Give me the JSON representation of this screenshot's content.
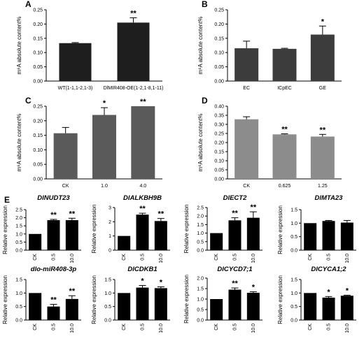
{
  "chart_data": [
    {
      "id": "A",
      "type": "bar",
      "label": "A",
      "ylabel": "m⁶A absolute content%",
      "ylim": [
        0,
        0.25
      ],
      "yticks": [
        "0.00",
        "0.05",
        "0.10",
        "0.15",
        "0.20",
        "0.25"
      ],
      "categories": [
        "WT(1-1,1-2,1-3)",
        "DlMIR408-OE(1-2,1-8,1-11)"
      ],
      "values": [
        0.133,
        0.205
      ],
      "errors": [
        0.002,
        0.017
      ],
      "stars": [
        "",
        "**"
      ],
      "bar_color": "#1e1e1e"
    },
    {
      "id": "B",
      "type": "bar",
      "label": "B",
      "ylabel": "m⁶A absolute content%",
      "ylim": [
        0,
        0.25
      ],
      "yticks": [
        "0.00",
        "0.05",
        "0.10",
        "0.15",
        "0.20",
        "0.25"
      ],
      "categories": [
        "EC",
        "ICpEC",
        "GE"
      ],
      "values": [
        0.115,
        0.113,
        0.163
      ],
      "errors": [
        0.025,
        0.002,
        0.03
      ],
      "stars": [
        "",
        "",
        "*"
      ],
      "bar_color": "#3c3c3c"
    },
    {
      "id": "C",
      "type": "bar",
      "label": "C",
      "ylabel": "m⁶A absolute content%",
      "ylim": [
        0,
        0.25
      ],
      "yticks": [
        "0.00",
        "0.05",
        "0.10",
        "0.15",
        "0.20",
        "0.25"
      ],
      "categories": [
        "CK",
        "1.0",
        "4.0"
      ],
      "values": [
        0.157,
        0.22,
        0.25
      ],
      "errors": [
        0.02,
        0.025,
        0.0
      ],
      "stars": [
        "",
        "*",
        "**"
      ],
      "bar_color": "#5a5a5a"
    },
    {
      "id": "D",
      "type": "bar",
      "label": "D",
      "ylabel": "m⁶A absolute content%",
      "ylim": [
        0,
        0.4
      ],
      "yticks": [
        "0.00",
        "0.05",
        "0.10",
        "0.15",
        "0.20",
        "0.25",
        "0.30",
        "0.35",
        "0.40"
      ],
      "categories": [
        "CK",
        "0.625",
        "1.25"
      ],
      "values": [
        0.328,
        0.245,
        0.233
      ],
      "errors": [
        0.014,
        0.003,
        0.012
      ],
      "stars": [
        "",
        "**",
        "**"
      ],
      "bar_color": "#8c8c8c"
    },
    {
      "id": "E1",
      "type": "bar",
      "label": "E",
      "title": "DlNUDT23",
      "ylabel": "Relative expression",
      "ylim": [
        0,
        2.5
      ],
      "yticks": [
        "0.0",
        "0.5",
        "1.0",
        "1.5",
        "2.0",
        "2.5"
      ],
      "categories": [
        "CK",
        "0.5",
        "10.0"
      ],
      "values": [
        1.0,
        1.85,
        1.85
      ],
      "errors": [
        0.0,
        0.05,
        0.12
      ],
      "stars": [
        "",
        "**",
        "**"
      ],
      "bar_color": "#000000"
    },
    {
      "id": "E2",
      "type": "bar",
      "title": "DlALKBH9B",
      "ylabel": "Relative expression",
      "ylim": [
        0,
        3
      ],
      "yticks": [
        "0",
        "1",
        "2",
        "3"
      ],
      "categories": [
        "CK",
        "0.5",
        "10.0"
      ],
      "values": [
        1.0,
        2.5,
        2.05
      ],
      "errors": [
        0.0,
        0.1,
        0.18
      ],
      "stars": [
        "",
        "**",
        "**"
      ],
      "bar_color": "#000000"
    },
    {
      "id": "E3",
      "type": "bar",
      "title": "DlECT2",
      "ylabel": "Relative expression",
      "ylim": [
        0,
        2.5
      ],
      "yticks": [
        "0.0",
        "0.5",
        "1.0",
        "1.5",
        "2.0",
        "2.5"
      ],
      "categories": [
        "CK",
        "0.5",
        "10.0"
      ],
      "values": [
        1.0,
        1.75,
        1.9
      ],
      "errors": [
        0.0,
        0.15,
        0.35
      ],
      "stars": [
        "",
        "**",
        "**"
      ],
      "bar_color": "#000000"
    },
    {
      "id": "E4",
      "type": "bar",
      "title": "DlMTA23",
      "ylabel": "Relative expression",
      "ylim": [
        0,
        1.5
      ],
      "yticks": [
        "0.0",
        "0.5",
        "1.0",
        "1.5"
      ],
      "categories": [
        "CK",
        "0.5",
        "10.0"
      ],
      "values": [
        1.0,
        1.08,
        1.02
      ],
      "errors": [
        0.0,
        0.02,
        0.08
      ],
      "stars": [
        "",
        "",
        ""
      ],
      "bar_color": "#000000"
    },
    {
      "id": "E5",
      "type": "bar",
      "title": "dlo-miR408-3p",
      "ylabel": "Relative expression",
      "ylim": [
        0,
        1.5
      ],
      "yticks": [
        "0.0",
        "0.5",
        "1.0",
        "1.5"
      ],
      "categories": [
        "CK",
        "0.5",
        "10.0"
      ],
      "values": [
        1.0,
        0.5,
        0.78
      ],
      "errors": [
        0.0,
        0.08,
        0.12
      ],
      "stars": [
        "",
        "**",
        "**"
      ],
      "bar_color": "#000000"
    },
    {
      "id": "E6",
      "type": "bar",
      "title": "DlCDKB1",
      "ylabel": "Relative expression",
      "ylim": [
        0,
        1.5
      ],
      "yticks": [
        "0.0",
        "0.5",
        "1.0",
        "1.5"
      ],
      "categories": [
        "CK",
        "0.5",
        "10.0"
      ],
      "values": [
        1.0,
        1.2,
        1.18
      ],
      "errors": [
        0.0,
        0.08,
        0.05
      ],
      "stars": [
        "",
        "*",
        "*"
      ],
      "bar_color": "#000000"
    },
    {
      "id": "E7",
      "type": "bar",
      "title": "DlCYCD7;1",
      "ylabel": "Relative expression",
      "ylim": [
        0,
        2.0
      ],
      "yticks": [
        "0.0",
        "0.5",
        "1.0",
        "1.5",
        "2.0"
      ],
      "categories": [
        "CK",
        "0.5",
        "10.0"
      ],
      "values": [
        1.0,
        1.45,
        1.3
      ],
      "errors": [
        0.0,
        0.08,
        0.05
      ],
      "stars": [
        "",
        "**",
        "*"
      ],
      "bar_color": "#000000"
    },
    {
      "id": "E8",
      "type": "bar",
      "title": "DlCYCA1;2",
      "ylabel": "Relative expression",
      "ylim": [
        0,
        1.5
      ],
      "yticks": [
        "0.0",
        "0.5",
        "1.0",
        "1.5"
      ],
      "categories": [
        "CK",
        "0.5",
        "10.0"
      ],
      "values": [
        1.0,
        0.83,
        0.9
      ],
      "errors": [
        0.0,
        0.04,
        0.02
      ],
      "stars": [
        "",
        "*",
        "*"
      ],
      "bar_color": "#000000"
    }
  ]
}
